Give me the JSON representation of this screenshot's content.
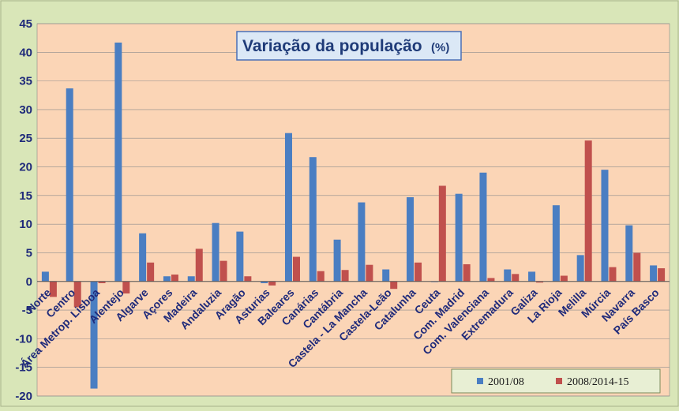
{
  "chart_data": {
    "type": "bar",
    "title": "Variação da população",
    "title_unit": "(%)",
    "xlabel": "",
    "ylabel": "",
    "ylim": [
      -20,
      45
    ],
    "yticks": [
      45,
      40,
      35,
      30,
      25,
      20,
      15,
      10,
      5,
      0,
      -5,
      -10,
      -15,
      -20
    ],
    "grid": true,
    "legend_position": "bottom-right",
    "categories": [
      "Norte",
      "Centro",
      "Área Metrop. Lisboa",
      "Alentejo",
      "Algarve",
      "Açores",
      "Madeira",
      "Andaluzia",
      "Aragão",
      "Asturias",
      "Baleares",
      "Canárias",
      "Cantábria",
      "Castela - La Mancha",
      "Castela-Leão",
      "Catalunha",
      "Ceuta",
      "Com. Madrid",
      "Com. Valenciana",
      "Extremadura",
      "Galiza",
      "La Rioja",
      "Melilla",
      "Múrcia",
      "Navarra",
      "País Basco"
    ],
    "series": [
      {
        "name": "2001/08",
        "color": "#4a7ec2",
        "values": [
          1.7,
          33.7,
          -18.7,
          41.7,
          8.4,
          0.9,
          0.9,
          10.2,
          8.7,
          -0.3,
          25.9,
          21.7,
          7.3,
          13.8,
          2.1,
          14.7,
          0.0,
          15.3,
          19.0,
          2.1,
          1.7,
          13.3,
          4.6,
          19.5,
          9.8,
          2.8
        ]
      },
      {
        "name": "2008/2014-15",
        "color": "#c0504d",
        "values": [
          -2.7,
          -4.5,
          -0.3,
          -2.1,
          3.3,
          1.2,
          5.7,
          3.6,
          0.9,
          -0.7,
          4.3,
          1.8,
          2.0,
          2.9,
          -1.3,
          3.3,
          16.7,
          3.0,
          0.6,
          1.3,
          -0.2,
          1.0,
          24.6,
          2.5,
          5.0,
          2.3
        ]
      }
    ]
  },
  "colors": {
    "plot_background": "#fbd5b6",
    "outer_background": "#d9e6b8",
    "axis_text": "#1f2a7a",
    "title_border": "#4a6fb5"
  }
}
